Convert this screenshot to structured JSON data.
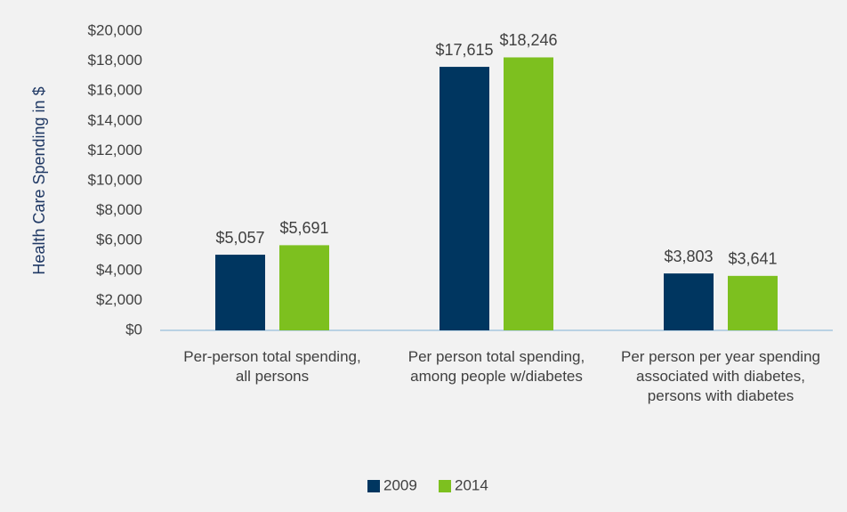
{
  "chart_data": {
    "type": "bar",
    "y_label": "Health Care Spending in $",
    "categories": [
      "Per-person total spending, all persons",
      "Per person total spending, among people w/diabetes",
      "Per person per year spending associated with diabetes, persons with diabetes"
    ],
    "series": [
      {
        "name": "2009",
        "color": "#003660",
        "values": [
          5057,
          17615,
          3803
        ],
        "value_labels": [
          "$5,057",
          "$17,615",
          "$3,803"
        ]
      },
      {
        "name": "2014",
        "color": "#7dc01f",
        "values": [
          5691,
          18246,
          3641
        ],
        "value_labels": [
          "$5,691",
          "$18,246",
          "$3,641"
        ]
      }
    ],
    "ylim": [
      0,
      20000
    ],
    "yticks": [
      {
        "value": 0,
        "label": "$0"
      },
      {
        "value": 2000,
        "label": "$2,000"
      },
      {
        "value": 4000,
        "label": "$4,000"
      },
      {
        "value": 6000,
        "label": "$6,000"
      },
      {
        "value": 8000,
        "label": "$8,000"
      },
      {
        "value": 10000,
        "label": "$10,000"
      },
      {
        "value": 12000,
        "label": "$12,000"
      },
      {
        "value": 14000,
        "label": "$14,000"
      },
      {
        "value": 16000,
        "label": "$16,000"
      },
      {
        "value": 18000,
        "label": "$18,000"
      },
      {
        "value": 20000,
        "label": "$20,000"
      }
    ],
    "grid": false,
    "legend": "bottom"
  }
}
